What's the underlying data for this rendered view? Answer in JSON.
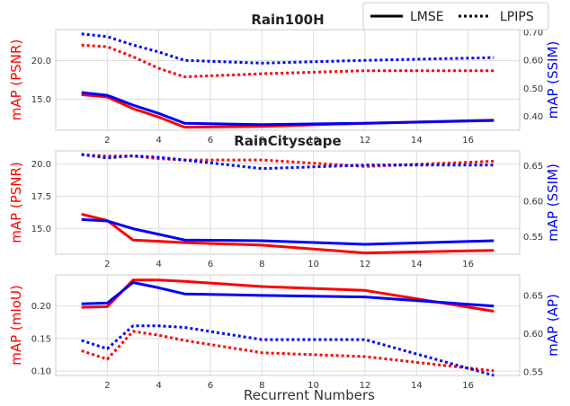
{
  "legend": {
    "entries": [
      {
        "label": "LMSE",
        "style": "solid"
      },
      {
        "label": "LPIPS",
        "style": "dotted"
      }
    ],
    "placement": "top-right"
  },
  "xlabel": "Recurrent Numbers",
  "chart_data": [
    {
      "type": "line",
      "title": "Rain100H",
      "x": [
        1,
        2,
        3,
        4,
        5,
        8,
        12,
        17
      ],
      "xlim": [
        0,
        18
      ],
      "xticks": [
        "2",
        "4",
        "6",
        "8",
        "10",
        "12",
        "14",
        "16"
      ],
      "left_axis": {
        "label": "mAP (PSNR)",
        "color": "#ff0000",
        "ylim": [
          11,
          24
        ],
        "ticks": [
          "15.0",
          "20.0"
        ]
      },
      "right_axis": {
        "label": "mAP (SSIM)",
        "color": "#0000ff",
        "ylim": [
          0.35,
          0.71
        ],
        "ticks": [
          "0.40",
          "0.50",
          "0.60",
          "0.70"
        ]
      },
      "series": [
        {
          "name": "LMSE",
          "axis": "left",
          "color": "#ff0000",
          "style": "solid",
          "values": [
            15.6,
            15.3,
            13.8,
            12.7,
            11.4,
            11.5,
            11.9,
            12.3
          ]
        },
        {
          "name": "LMSE",
          "axis": "right",
          "color": "#0000ff",
          "style": "solid",
          "values": [
            0.485,
            0.475,
            0.44,
            0.41,
            0.375,
            0.37,
            0.375,
            0.385
          ]
        },
        {
          "name": "LPIPS",
          "axis": "left",
          "color": "#ff0000",
          "style": "dotted",
          "values": [
            22.0,
            21.8,
            20.5,
            19.0,
            17.9,
            18.3,
            18.7,
            18.7
          ]
        },
        {
          "name": "LPIPS",
          "axis": "right",
          "color": "#0000ff",
          "style": "dotted",
          "values": [
            0.695,
            0.685,
            0.655,
            0.63,
            0.6,
            0.59,
            0.6,
            0.61
          ]
        }
      ],
      "grid": true
    },
    {
      "type": "line",
      "title": "RainCityscape",
      "x": [
        1,
        2,
        3,
        4,
        5,
        8,
        12,
        17
      ],
      "xlim": [
        0,
        18
      ],
      "xticks": [
        "2",
        "4",
        "6",
        "8",
        "10",
        "12",
        "14",
        "16"
      ],
      "left_axis": {
        "label": "mAP (PSNR)",
        "color": "#ff0000",
        "ylim": [
          13.0,
          21.0
        ],
        "ticks": [
          "15.0",
          "17.5",
          "20.0"
        ]
      },
      "right_axis": {
        "label": "mAP (SSIM)",
        "color": "#0000ff",
        "ylim": [
          0.525,
          0.671
        ],
        "ticks": [
          "0.55",
          "0.60",
          "0.65"
        ]
      },
      "series": [
        {
          "name": "LMSE",
          "axis": "left",
          "color": "#ff0000",
          "style": "solid",
          "values": [
            16.1,
            15.6,
            14.1,
            14.0,
            13.9,
            13.7,
            13.1,
            13.3
          ]
        },
        {
          "name": "LMSE",
          "axis": "right",
          "color": "#0000ff",
          "style": "solid",
          "values": [
            0.574,
            0.572,
            0.561,
            0.553,
            0.545,
            0.544,
            0.539,
            0.544
          ]
        },
        {
          "name": "LPIPS",
          "axis": "left",
          "color": "#ff0000",
          "style": "dotted",
          "values": [
            20.7,
            20.6,
            20.6,
            20.4,
            20.3,
            20.3,
            19.8,
            20.2
          ]
        },
        {
          "name": "LPIPS",
          "axis": "right",
          "color": "#0000ff",
          "style": "dotted",
          "values": [
            0.666,
            0.661,
            0.664,
            0.662,
            0.658,
            0.646,
            0.651,
            0.651
          ]
        }
      ],
      "grid": true
    },
    {
      "type": "line",
      "title": "",
      "x": [
        1,
        2,
        3,
        4,
        5,
        8,
        12,
        17
      ],
      "xlim": [
        0,
        18
      ],
      "xticks": [
        "2",
        "4",
        "6",
        "8",
        "10",
        "12",
        "14",
        "16"
      ],
      "left_axis": {
        "label": "mAP (mIoU)",
        "color": "#ff0000",
        "ylim": [
          0.093,
          0.248
        ],
        "ticks": [
          "0.10",
          "0.15",
          "0.20"
        ]
      },
      "right_axis": {
        "label": "mAP (AP)",
        "color": "#0000ff",
        "ylim": [
          0.545,
          0.677
        ],
        "ticks": [
          "0.55",
          "0.60",
          "0.65"
        ]
      },
      "series": [
        {
          "name": "LMSE",
          "axis": "left",
          "color": "#ff0000",
          "style": "solid",
          "values": [
            0.198,
            0.199,
            0.24,
            0.24,
            0.238,
            0.23,
            0.224,
            0.192
          ]
        },
        {
          "name": "LMSE",
          "axis": "right",
          "color": "#0000ff",
          "style": "solid",
          "values": [
            0.639,
            0.64,
            0.667,
            0.66,
            0.652,
            0.65,
            0.648,
            0.636
          ]
        },
        {
          "name": "LPIPS",
          "axis": "left",
          "color": "#ff0000",
          "style": "dotted",
          "values": [
            0.131,
            0.118,
            0.161,
            0.155,
            0.147,
            0.128,
            0.122,
            0.1
          ]
        },
        {
          "name": "LPIPS",
          "axis": "right",
          "color": "#0000ff",
          "style": "dotted",
          "values": [
            0.591,
            0.58,
            0.61,
            0.61,
            0.608,
            0.592,
            0.592,
            0.545
          ]
        }
      ],
      "grid": true
    }
  ]
}
